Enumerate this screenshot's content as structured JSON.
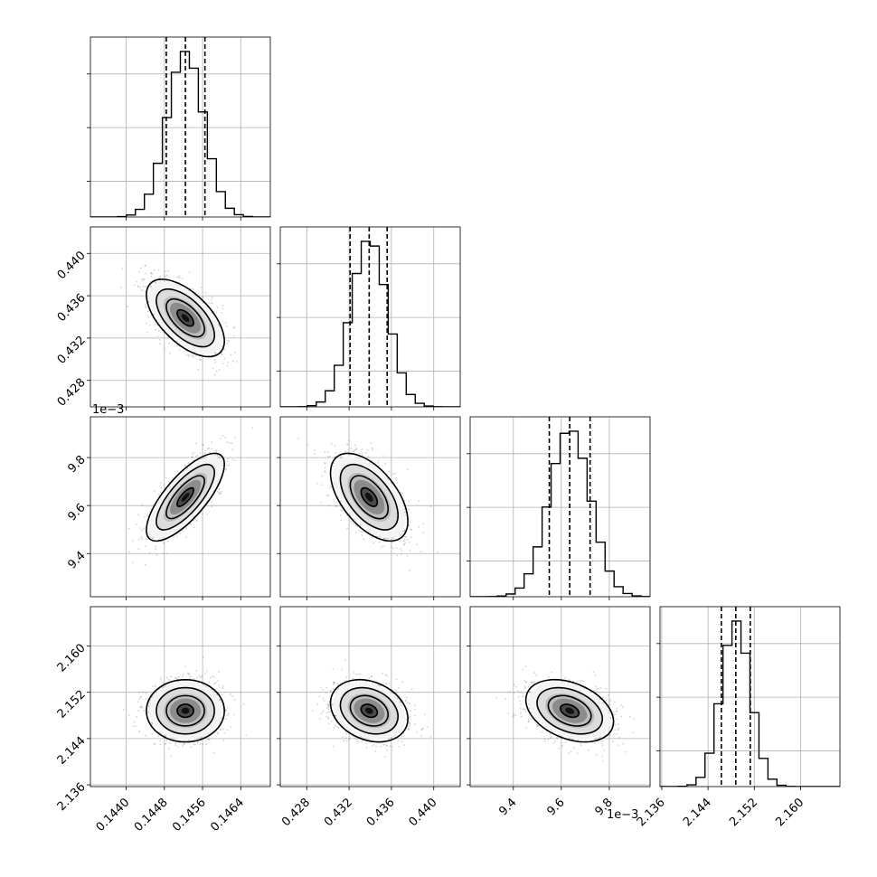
{
  "chart_data": {
    "type": "corner",
    "note": "corner plot of 4 parameters with 1D marginal histograms and 2D density/contour panels",
    "parameters": [
      {
        "label": "",
        "range": [
          0.14325,
          0.14702
        ],
        "ticks": [
          0.144,
          0.1448,
          0.1456,
          0.1464
        ],
        "tick_labels": [
          "0.1440",
          "0.1448",
          "0.1456",
          "0.1464"
        ],
        "offset_text": "",
        "mean": 0.14524,
        "sd": 0.00038,
        "quantiles": [
          0.14484,
          0.14524,
          0.14565
        ]
      },
      {
        "label": "",
        "range": [
          0.4255,
          0.4425
        ],
        "ticks": [
          0.428,
          0.432,
          0.436,
          0.44
        ],
        "tick_labels": [
          "0.428",
          "0.432",
          "0.436",
          "0.440"
        ],
        "offset_text": "",
        "mean": 0.4339,
        "sd": 0.0017,
        "quantiles": [
          0.4321,
          0.4339,
          0.4356
        ]
      },
      {
        "label": "",
        "range": [
          9.22,
          9.97
        ],
        "ticks": [
          9.4,
          9.6,
          9.8
        ],
        "tick_labels": [
          "9.4",
          "9.6",
          "9.8"
        ],
        "offset_text": "1e−3",
        "mean": 9.635,
        "sd": 0.085,
        "quantiles": [
          9.55,
          9.635,
          9.72
        ]
      },
      {
        "label": "",
        "range": [
          2.1357,
          2.1668
        ],
        "ticks": [
          2.136,
          2.144,
          2.152,
          2.16
        ],
        "tick_labels": [
          "2.136",
          "2.144",
          "2.152",
          "2.160"
        ],
        "offset_text": "",
        "mean": 2.1488,
        "sd": 0.0025,
        "quantiles": [
          2.1463,
          2.1488,
          2.1513
        ]
      }
    ],
    "correlations": [
      [
        1,
        -0.6,
        0.75,
        0.0
      ],
      [
        -0.6,
        1,
        -0.55,
        -0.25
      ],
      [
        0.75,
        -0.55,
        1,
        -0.35
      ],
      [
        0.0,
        -0.25,
        -0.35,
        1
      ]
    ],
    "histogram_bins": 20,
    "contour_levels": 3,
    "grid": true,
    "quantile_lines": "dashed",
    "colors": {
      "line": "#000000",
      "grid": "#b0b0b0",
      "points": "#808080"
    }
  }
}
